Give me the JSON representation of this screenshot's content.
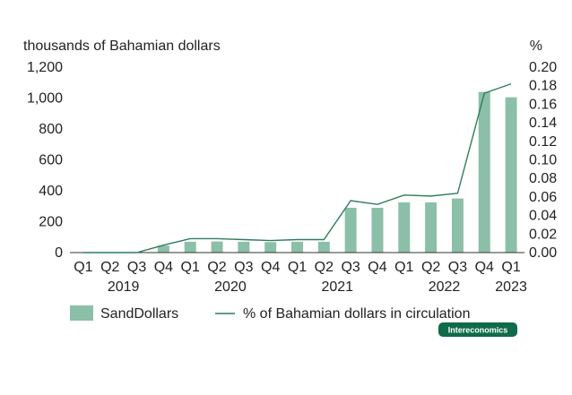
{
  "chart_data": {
    "type": "bar",
    "left_axis_title": "thousands of Bahamian dollars",
    "right_axis_title": "%",
    "categories": [
      "Q1",
      "Q2",
      "Q3",
      "Q4",
      "Q1",
      "Q2",
      "Q3",
      "Q4",
      "Q1",
      "Q2",
      "Q3",
      "Q4",
      "Q1",
      "Q2",
      "Q3",
      "Q4",
      "Q1"
    ],
    "year_labels": [
      {
        "label": "2019",
        "center_index": 1.5
      },
      {
        "label": "2020",
        "center_index": 5.5
      },
      {
        "label": "2021",
        "center_index": 9.5
      },
      {
        "label": "2022",
        "center_index": 13.5
      },
      {
        "label": "2023",
        "center_index": 16
      }
    ],
    "series": [
      {
        "name": "SandDollars",
        "kind": "bar",
        "axis": "left",
        "color": "#8cbfa8",
        "values": [
          0,
          0,
          0,
          45,
          70,
          72,
          70,
          68,
          70,
          70,
          290,
          290,
          325,
          325,
          350,
          1040,
          1005
        ]
      },
      {
        "name": "% of Bahamian dollars in circulation",
        "kind": "line",
        "axis": "right",
        "color": "#2e7d5a",
        "values": [
          0.0,
          0.0,
          0.0,
          0.008,
          0.015,
          0.015,
          0.014,
          0.013,
          0.014,
          0.014,
          0.056,
          0.052,
          0.062,
          0.061,
          0.064,
          0.172,
          0.182
        ]
      }
    ],
    "left_ylim": [
      0,
      1200
    ],
    "left_ticks": [
      "0",
      "200",
      "400",
      "600",
      "800",
      "1,000",
      "1,200"
    ],
    "left_tick_values": [
      0,
      200,
      400,
      600,
      800,
      1000,
      1200
    ],
    "right_ylim": [
      0,
      0.2
    ],
    "right_ticks": [
      "0.00",
      "0.02",
      "0.04",
      "0.06",
      "0.08",
      "0.10",
      "0.12",
      "0.14",
      "0.16",
      "0.18",
      "0.20"
    ],
    "right_tick_values": [
      0,
      0.02,
      0.04,
      0.06,
      0.08,
      0.1,
      0.12,
      0.14,
      0.16,
      0.18,
      0.2
    ],
    "grid": false,
    "legend_position": "bottom"
  },
  "badge": {
    "text": "Intereconomics",
    "color": "#0f6b4a"
  },
  "axis_color": "#333333"
}
